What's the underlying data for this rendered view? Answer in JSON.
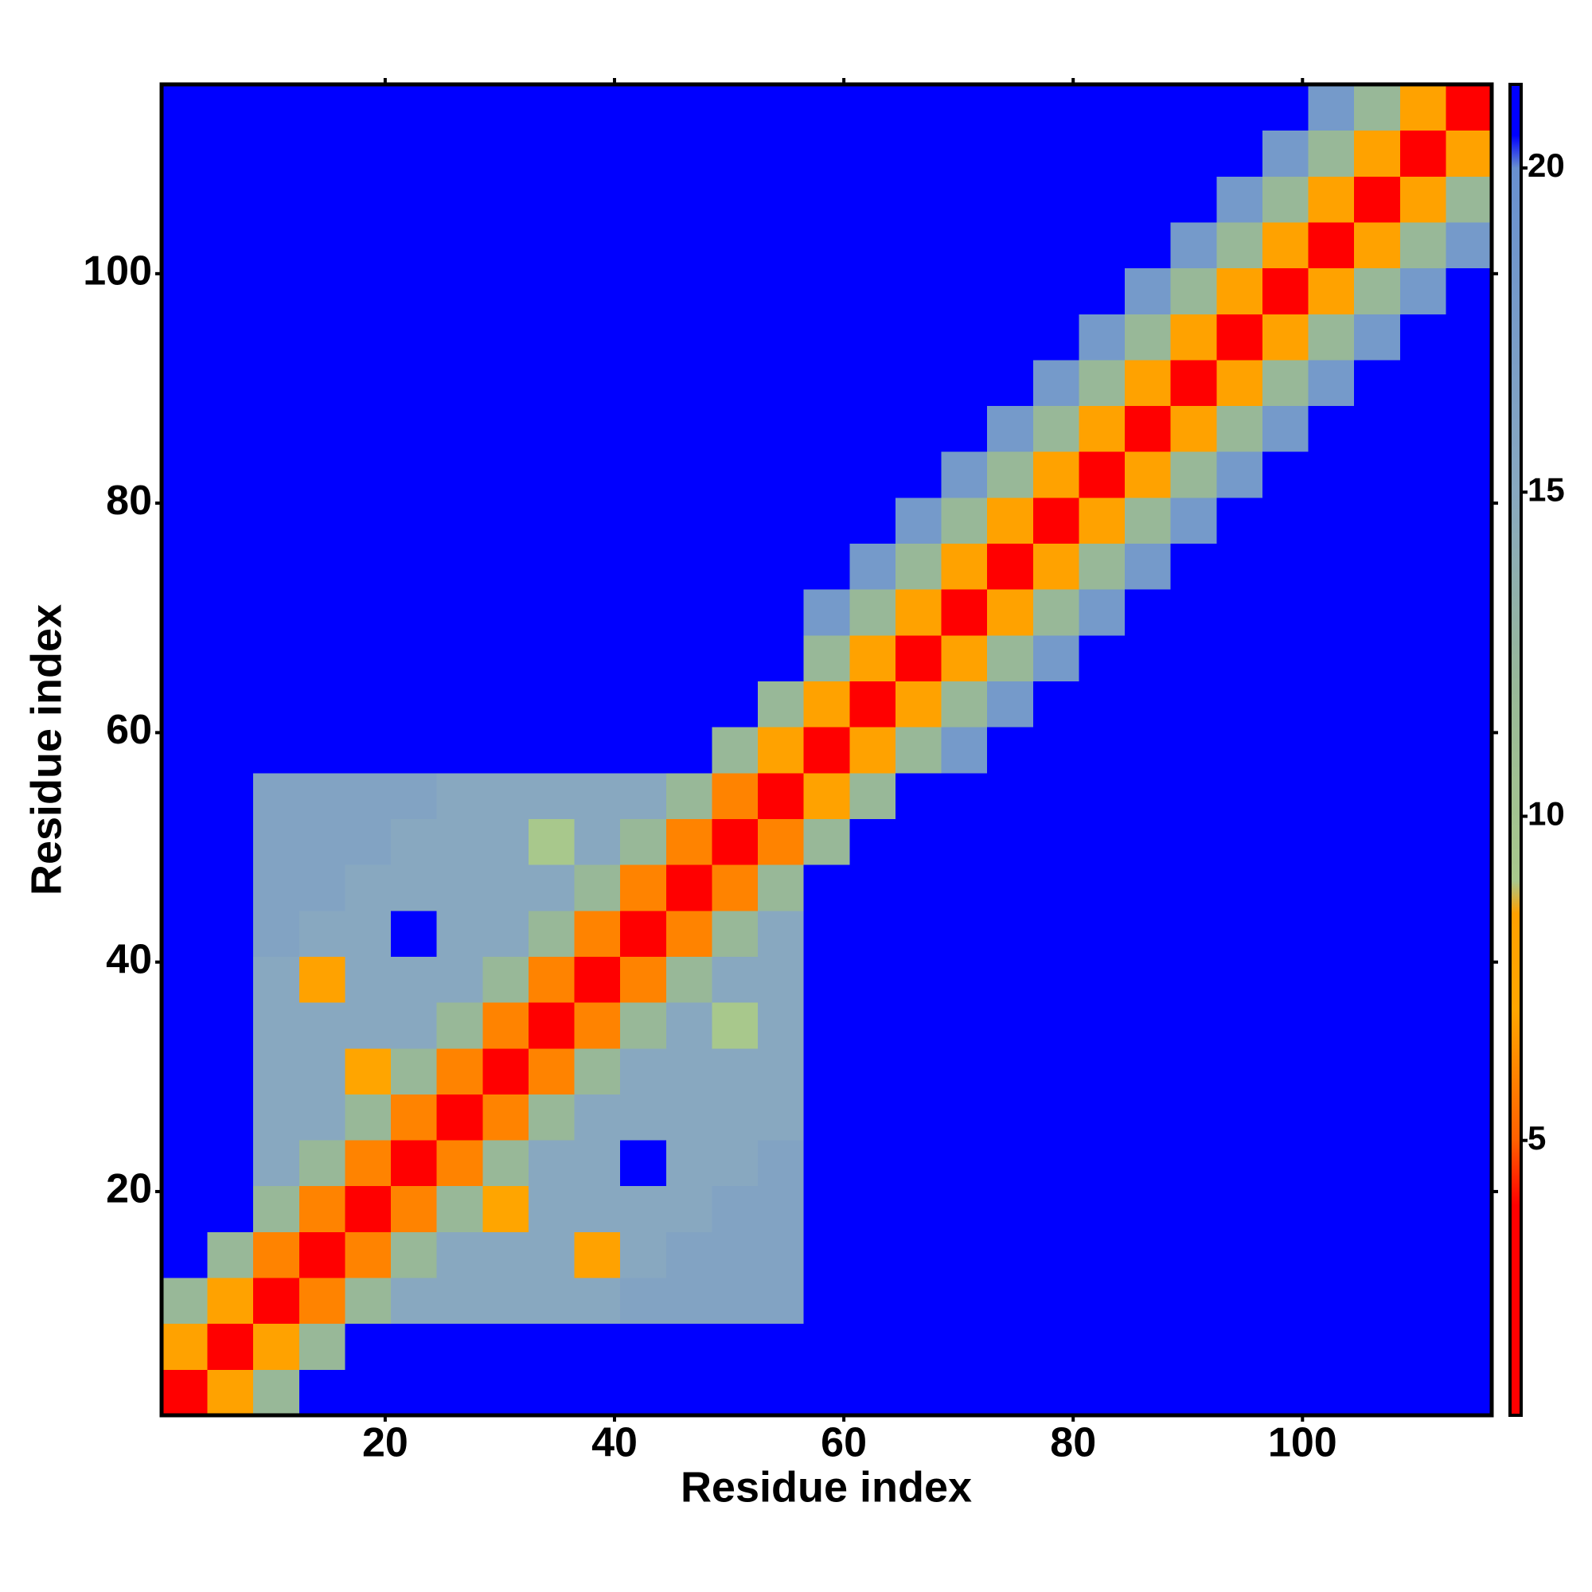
{
  "chart_data": {
    "type": "heatmap",
    "x_label": "Residue index",
    "y_label": "Residue index",
    "xlim": [
      0.5,
      116.5
    ],
    "ylim": [
      0.5,
      116.5
    ],
    "xticks": [
      20,
      40,
      60,
      80,
      100
    ],
    "yticks": [
      20,
      40,
      60,
      80,
      100
    ],
    "clim": [
      0.76,
      21.29
    ],
    "cticks": [
      5,
      10,
      15,
      20
    ],
    "colorscale": [
      [
        0.76,
        "#ff0000"
      ],
      [
        4,
        "#ff0000"
      ],
      [
        5,
        "#ff6000"
      ],
      [
        7,
        "#ffa500"
      ],
      [
        8.5,
        "#ffa000"
      ],
      [
        9,
        "#a8c88c"
      ],
      [
        12,
        "#98b898"
      ],
      [
        15,
        "#88a8c0"
      ],
      [
        20,
        "#6890d0"
      ],
      [
        20.5,
        "#0000ff"
      ],
      [
        21.29,
        "#0000ff"
      ]
    ],
    "x": [
      2.5,
      6.5,
      10.5,
      14.5,
      18.5,
      22.5,
      26.5,
      30.5,
      34.5,
      38.5,
      42.5,
      46.5,
      50.5,
      54.5,
      58.5,
      62.5,
      66.5,
      70.5,
      74.5,
      78.5,
      82.5,
      86.5,
      90.5,
      94.5,
      98.5,
      102.5,
      106.5,
      110.5,
      114.5
    ],
    "y": [
      2.5,
      6.5,
      10.5,
      14.5,
      18.5,
      22.5,
      26.5,
      30.5,
      34.5,
      38.5,
      42.5,
      46.5,
      50.5,
      54.5,
      58.5,
      62.5,
      66.5,
      70.5,
      74.5,
      78.5,
      82.5,
      86.5,
      90.5,
      94.5,
      98.5,
      102.5,
      106.5,
      110.5,
      114.5
    ],
    "z": [
      [
        3,
        8,
        12,
        21,
        21,
        21,
        21,
        21,
        21,
        21,
        21,
        21,
        21,
        21,
        21,
        21,
        21,
        21,
        21,
        21,
        21,
        21,
        21,
        21,
        21,
        21,
        21,
        21,
        21
      ],
      [
        8,
        3,
        8,
        12,
        21,
        21,
        21,
        21,
        21,
        21,
        21,
        21,
        21,
        21,
        21,
        21,
        21,
        21,
        21,
        21,
        21,
        21,
        21,
        21,
        21,
        21,
        21,
        21,
        21
      ],
      [
        12,
        8,
        3,
        6,
        12,
        15,
        15,
        15,
        15,
        15,
        16,
        16,
        16,
        16,
        21,
        21,
        21,
        21,
        21,
        21,
        21,
        21,
        21,
        21,
        21,
        21,
        21,
        21,
        21
      ],
      [
        21,
        12,
        6,
        3,
        6,
        12,
        15,
        15,
        15,
        8,
        15,
        16,
        16,
        16,
        21,
        21,
        21,
        21,
        21,
        21,
        21,
        21,
        21,
        21,
        21,
        21,
        21,
        21,
        21
      ],
      [
        21,
        21,
        12,
        6,
        3,
        6,
        12,
        7,
        15,
        15,
        15,
        15,
        16,
        16,
        21,
        21,
        21,
        21,
        21,
        21,
        21,
        21,
        21,
        21,
        21,
        21,
        21,
        21,
        21
      ],
      [
        21,
        21,
        15,
        12,
        6,
        3,
        6,
        12,
        15,
        15,
        21,
        15,
        15,
        16,
        21,
        21,
        21,
        21,
        21,
        21,
        21,
        21,
        21,
        21,
        21,
        21,
        21,
        21,
        21
      ],
      [
        21,
        21,
        15,
        15,
        12,
        6,
        3,
        6,
        12,
        15,
        15,
        15,
        15,
        15,
        21,
        21,
        21,
        21,
        21,
        21,
        21,
        21,
        21,
        21,
        21,
        21,
        21,
        21,
        21
      ],
      [
        21,
        21,
        15,
        15,
        7,
        12,
        6,
        3,
        6,
        12,
        15,
        15,
        15,
        15,
        21,
        21,
        21,
        21,
        21,
        21,
        21,
        21,
        21,
        21,
        21,
        21,
        21,
        21,
        21
      ],
      [
        21,
        21,
        15,
        15,
        15,
        15,
        12,
        6,
        3,
        6,
        12,
        15,
        9,
        15,
        21,
        21,
        21,
        21,
        21,
        21,
        21,
        21,
        21,
        21,
        21,
        21,
        21,
        21,
        21
      ],
      [
        21,
        21,
        15,
        8,
        15,
        15,
        15,
        12,
        6,
        3,
        6,
        12,
        15,
        15,
        21,
        21,
        21,
        21,
        21,
        21,
        21,
        21,
        21,
        21,
        21,
        21,
        21,
        21,
        21
      ],
      [
        21,
        21,
        16,
        15,
        15,
        21,
        15,
        15,
        12,
        6,
        3,
        6,
        12,
        15,
        21,
        21,
        21,
        21,
        21,
        21,
        21,
        21,
        21,
        21,
        21,
        21,
        21,
        21,
        21
      ],
      [
        21,
        21,
        16,
        16,
        15,
        15,
        15,
        15,
        15,
        12,
        6,
        3,
        6,
        12,
        21,
        21,
        21,
        21,
        21,
        21,
        21,
        21,
        21,
        21,
        21,
        21,
        21,
        21,
        21
      ],
      [
        21,
        21,
        16,
        16,
        16,
        15,
        15,
        15,
        9,
        15,
        12,
        6,
        3,
        6,
        12,
        21,
        21,
        21,
        21,
        21,
        21,
        21,
        21,
        21,
        21,
        21,
        21,
        21,
        21
      ],
      [
        21,
        21,
        16,
        16,
        16,
        16,
        15,
        15,
        15,
        15,
        15,
        12,
        6,
        3,
        8,
        12,
        21,
        21,
        21,
        21,
        21,
        21,
        21,
        21,
        21,
        21,
        21,
        21,
        21
      ],
      [
        21,
        21,
        21,
        21,
        21,
        21,
        21,
        21,
        21,
        21,
        21,
        21,
        12,
        8,
        3,
        8,
        12,
        18,
        21,
        21,
        21,
        21,
        21,
        21,
        21,
        21,
        21,
        21,
        21
      ],
      [
        21,
        21,
        21,
        21,
        21,
        21,
        21,
        21,
        21,
        21,
        21,
        21,
        21,
        12,
        8,
        3,
        8,
        12,
        18,
        21,
        21,
        21,
        21,
        21,
        21,
        21,
        21,
        21,
        21
      ],
      [
        21,
        21,
        21,
        21,
        21,
        21,
        21,
        21,
        21,
        21,
        21,
        21,
        21,
        21,
        12,
        8,
        3,
        8,
        12,
        18,
        21,
        21,
        21,
        21,
        21,
        21,
        21,
        21,
        21
      ],
      [
        21,
        21,
        21,
        21,
        21,
        21,
        21,
        21,
        21,
        21,
        21,
        21,
        21,
        21,
        18,
        12,
        8,
        3,
        8,
        12,
        18,
        21,
        21,
        21,
        21,
        21,
        21,
        21,
        21
      ],
      [
        21,
        21,
        21,
        21,
        21,
        21,
        21,
        21,
        21,
        21,
        21,
        21,
        21,
        21,
        21,
        18,
        12,
        8,
        3,
        8,
        12,
        18,
        21,
        21,
        21,
        21,
        21,
        21,
        21
      ],
      [
        21,
        21,
        21,
        21,
        21,
        21,
        21,
        21,
        21,
        21,
        21,
        21,
        21,
        21,
        21,
        21,
        18,
        12,
        8,
        3,
        8,
        12,
        18,
        21,
        21,
        21,
        21,
        21,
        21
      ],
      [
        21,
        21,
        21,
        21,
        21,
        21,
        21,
        21,
        21,
        21,
        21,
        21,
        21,
        21,
        21,
        21,
        21,
        18,
        12,
        8,
        3,
        8,
        12,
        18,
        21,
        21,
        21,
        21,
        21
      ],
      [
        21,
        21,
        21,
        21,
        21,
        21,
        21,
        21,
        21,
        21,
        21,
        21,
        21,
        21,
        21,
        21,
        21,
        21,
        18,
        12,
        8,
        3,
        8,
        12,
        18,
        21,
        21,
        21,
        21
      ],
      [
        21,
        21,
        21,
        21,
        21,
        21,
        21,
        21,
        21,
        21,
        21,
        21,
        21,
        21,
        21,
        21,
        21,
        21,
        21,
        18,
        12,
        8,
        3,
        8,
        12,
        18,
        21,
        21,
        21
      ],
      [
        21,
        21,
        21,
        21,
        21,
        21,
        21,
        21,
        21,
        21,
        21,
        21,
        21,
        21,
        21,
        21,
        21,
        21,
        21,
        21,
        18,
        12,
        8,
        3,
        8,
        12,
        18,
        21,
        21
      ],
      [
        21,
        21,
        21,
        21,
        21,
        21,
        21,
        21,
        21,
        21,
        21,
        21,
        21,
        21,
        21,
        21,
        21,
        21,
        21,
        21,
        21,
        18,
        12,
        8,
        3,
        8,
        12,
        18,
        21
      ],
      [
        21,
        21,
        21,
        21,
        21,
        21,
        21,
        21,
        21,
        21,
        21,
        21,
        21,
        21,
        21,
        21,
        21,
        21,
        21,
        21,
        21,
        21,
        18,
        12,
        8,
        3,
        8,
        12,
        18
      ],
      [
        21,
        21,
        21,
        21,
        21,
        21,
        21,
        21,
        21,
        21,
        21,
        21,
        21,
        21,
        21,
        21,
        21,
        21,
        21,
        21,
        21,
        21,
        21,
        18,
        12,
        8,
        3,
        8,
        12
      ],
      [
        21,
        21,
        21,
        21,
        21,
        21,
        21,
        21,
        21,
        21,
        21,
        21,
        21,
        21,
        21,
        21,
        21,
        21,
        21,
        21,
        21,
        21,
        21,
        21,
        18,
        12,
        8,
        3,
        8
      ],
      [
        21,
        21,
        21,
        21,
        21,
        21,
        21,
        21,
        21,
        21,
        21,
        21,
        21,
        21,
        21,
        21,
        21,
        21,
        21,
        21,
        21,
        21,
        21,
        21,
        21,
        18,
        12,
        8,
        3
      ]
    ]
  }
}
